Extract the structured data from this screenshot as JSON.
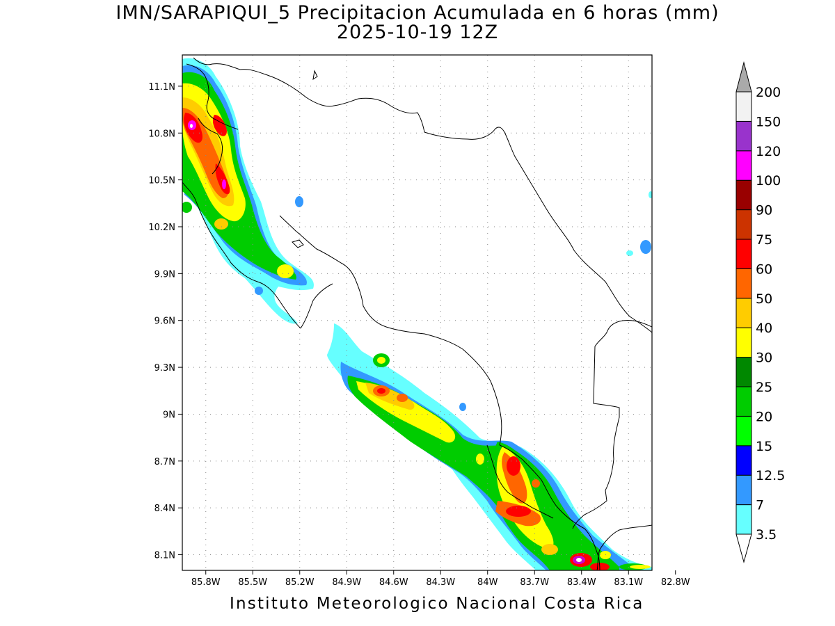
{
  "title": {
    "line1": "IMN/SARAPIQUI_5 Precipitacion Acumulada en 6 horas (mm)",
    "line2": "2025-10-19 12Z"
  },
  "footer": "Instituto Meteorologico Nacional Costa Rica",
  "map": {
    "lon_labels": [
      "85.8W",
      "85.5W",
      "85.2W",
      "84.9W",
      "84.6W",
      "84.3W",
      "84W",
      "83.7W",
      "83.4W",
      "83.1W",
      "82.8W"
    ],
    "lon_values": [
      -85.8,
      -85.5,
      -85.2,
      -84.9,
      -84.6,
      -84.3,
      -84.0,
      -83.7,
      -83.4,
      -83.1,
      -82.8
    ],
    "lat_labels": [
      "11.1N",
      "10.8N",
      "10.5N",
      "10.2N",
      "9.9N",
      "9.6N",
      "9.3N",
      "9N",
      "8.7N",
      "8.4N",
      "8.1N"
    ],
    "lat_values": [
      11.1,
      10.8,
      10.5,
      10.2,
      9.9,
      9.6,
      9.3,
      9.0,
      8.7,
      8.4,
      8.1
    ],
    "lon_range": [
      -85.95,
      -82.95
    ],
    "lat_range": [
      8.0,
      11.3
    ]
  },
  "colorbar": {
    "labels": [
      "3.5",
      "7",
      "12.5",
      "15",
      "20",
      "25",
      "30",
      "40",
      "50",
      "60",
      "75",
      "90",
      "100",
      "120",
      "150",
      "200"
    ],
    "colors": [
      "#ffffff",
      "#66ffff",
      "#3399ff",
      "#0000ff",
      "#00ff00",
      "#00cc00",
      "#008800",
      "#ffff00",
      "#ffcc00",
      "#ff6600",
      "#ff0000",
      "#cc3300",
      "#990000",
      "#ff00ff",
      "#9933cc",
      "#f2f2f2"
    ],
    "over_color": "#aaaaaa",
    "under_color": "#ffffff"
  }
}
